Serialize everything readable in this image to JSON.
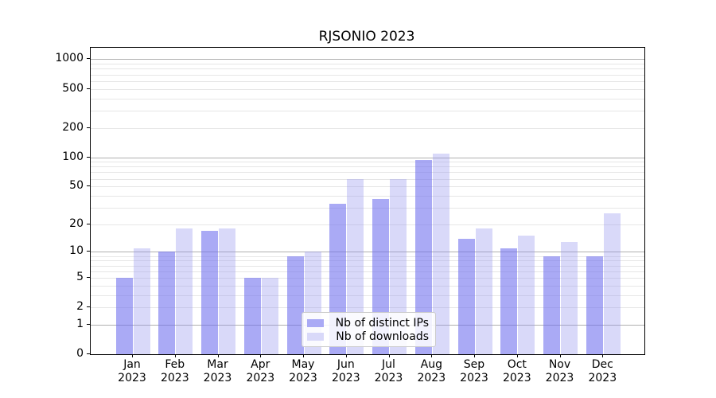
{
  "title": "RJSONIO 2023",
  "colors": {
    "distinct_ips_fill": "rgba(113,113,238,0.6)",
    "downloads_fill": "rgba(146,146,238,0.35)",
    "distinct_ips_solid": "#aaaaf5",
    "downloads_solid": "#d9d9f9",
    "grid_major": "#b0b0b0",
    "grid_minor": "#e6e6e6",
    "axis": "#000000"
  },
  "legend": {
    "items": [
      {
        "label": "Nb of distinct IPs",
        "color_key": "distinct_ips_solid"
      },
      {
        "label": "Nb of downloads",
        "color_key": "downloads_solid"
      }
    ]
  },
  "chart_data": {
    "type": "bar",
    "title": "RJSONIO 2023",
    "categories": [
      "Jan 2023",
      "Feb 2023",
      "Mar 2023",
      "Apr 2023",
      "May 2023",
      "Jun 2023",
      "Jul 2023",
      "Aug 2023",
      "Sep 2023",
      "Oct 2023",
      "Nov 2023",
      "Dec 2023"
    ],
    "series": [
      {
        "name": "Nb of distinct IPs",
        "values": [
          5,
          10,
          17,
          5,
          9,
          33,
          37,
          94,
          14,
          11,
          9,
          9
        ]
      },
      {
        "name": "Nb of downloads",
        "values": [
          11,
          18,
          18,
          5,
          10,
          60,
          60,
          108,
          18,
          15,
          13,
          26
        ]
      }
    ],
    "xlabel": "",
    "ylabel": "",
    "yscale": "log1p",
    "yticks": [
      0,
      1,
      2,
      5,
      10,
      20,
      50,
      100,
      200,
      500,
      1000
    ],
    "minor_gridlines": [
      2,
      3,
      4,
      5,
      6,
      7,
      8,
      9,
      20,
      30,
      40,
      50,
      60,
      70,
      80,
      90,
      200,
      300,
      400,
      500,
      600,
      700,
      800,
      900
    ],
    "major_gridlines": [
      1,
      10,
      100,
      1000
    ],
    "grid": true,
    "legend_position": "lower center"
  }
}
